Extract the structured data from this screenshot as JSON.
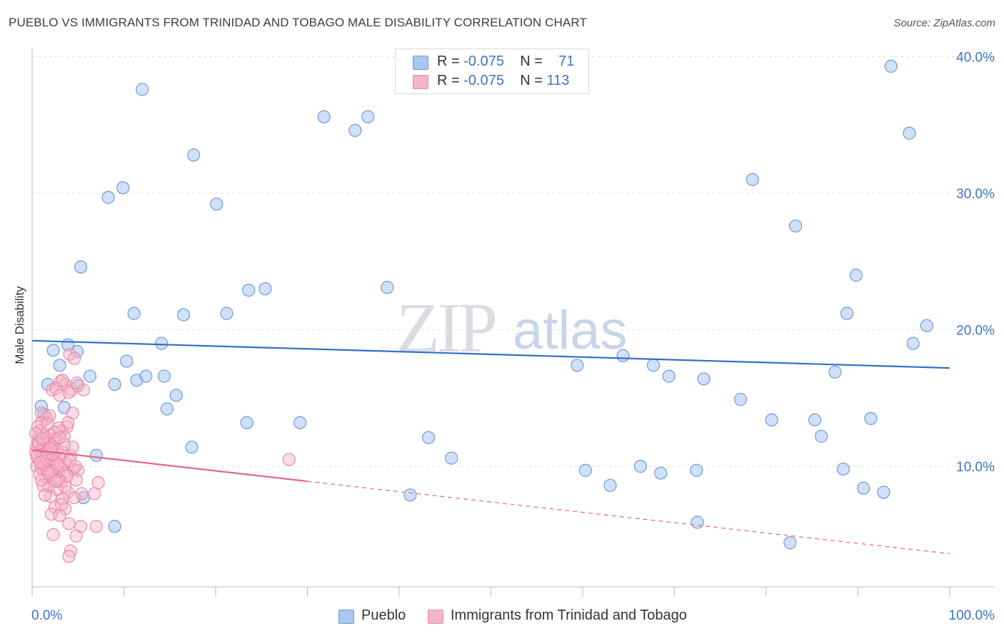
{
  "header": {
    "title": "PUEBLO VS IMMIGRANTS FROM TRINIDAD AND TOBAGO MALE DISABILITY CORRELATION CHART",
    "source": "Source: ZipAtlas.com"
  },
  "watermark": {
    "zip": "ZIP",
    "atlas": "atlas"
  },
  "legend": {
    "rows": [
      {
        "r_label": "R = ",
        "r_value": "-0.075",
        "n_label": "N = ",
        "n_value": "71",
        "color": "#a9c6f0"
      },
      {
        "r_label": "R = ",
        "r_value": "-0.075",
        "n_label": "N = ",
        "n_value": "113",
        "color": "#f5b5c8"
      }
    ]
  },
  "bottom_legend": [
    "Pueblo",
    "Immigrants from Trinidad and Tobago"
  ],
  "colors": {
    "blue_fill": "#a9c6f0",
    "blue_stroke": "#6e9bd8",
    "blue_line": "#2f6fc9",
    "pink_fill": "#f5b5c8",
    "pink_stroke": "#e98aa8",
    "pink_line": "#e4658f",
    "grid": "#e2e2e2",
    "axis_label": "#3f73c8"
  },
  "chart_data": {
    "type": "scatter",
    "title": "PUEBLO VS IMMIGRANTS FROM TRINIDAD AND TOBAGO MALE DISABILITY CORRELATION CHART",
    "xlabel": "",
    "ylabel": "Male Disability",
    "xlim": [
      0,
      100
    ],
    "ylim": [
      0,
      40
    ],
    "x_tick_labels": [
      "0.0%",
      "100.0%"
    ],
    "y_ticks": [
      10,
      20,
      30,
      40
    ],
    "y_tick_labels": [
      "10.0%",
      "20.0%",
      "30.0%",
      "40.0%"
    ],
    "grid": true,
    "series": [
      {
        "name": "Pueblo",
        "color": "#a9c6f0",
        "trend": {
          "x": [
            0,
            100
          ],
          "y": [
            19.2,
            17.2
          ]
        },
        "points": [
          [
            12.0,
            37.6
          ],
          [
            31.8,
            35.6
          ],
          [
            35.2,
            34.6
          ],
          [
            36.6,
            35.6
          ],
          [
            93.6,
            39.3
          ],
          [
            95.6,
            34.4
          ],
          [
            17.6,
            32.8
          ],
          [
            9.9,
            30.4
          ],
          [
            8.3,
            29.7
          ],
          [
            20.1,
            29.2
          ],
          [
            78.5,
            31.0
          ],
          [
            83.2,
            27.6
          ],
          [
            5.3,
            24.6
          ],
          [
            23.6,
            22.9
          ],
          [
            25.4,
            23.0
          ],
          [
            38.7,
            23.1
          ],
          [
            89.8,
            24.0
          ],
          [
            11.1,
            21.2
          ],
          [
            16.5,
            21.1
          ],
          [
            21.2,
            21.2
          ],
          [
            88.8,
            21.2
          ],
          [
            97.5,
            20.3
          ],
          [
            2.3,
            18.5
          ],
          [
            3.9,
            18.9
          ],
          [
            4.9,
            18.4
          ],
          [
            14.1,
            19.0
          ],
          [
            96.0,
            19.0
          ],
          [
            10.3,
            17.7
          ],
          [
            3.0,
            17.4
          ],
          [
            6.3,
            16.6
          ],
          [
            9.0,
            16.0
          ],
          [
            11.4,
            16.3
          ],
          [
            12.4,
            16.6
          ],
          [
            14.4,
            16.6
          ],
          [
            1.7,
            16.0
          ],
          [
            5.0,
            15.9
          ],
          [
            15.7,
            15.2
          ],
          [
            14.7,
            14.2
          ],
          [
            1.0,
            14.4
          ],
          [
            3.5,
            14.3
          ],
          [
            1.3,
            13.8
          ],
          [
            23.4,
            13.2
          ],
          [
            59.4,
            17.4
          ],
          [
            64.4,
            18.1
          ],
          [
            67.7,
            17.4
          ],
          [
            69.4,
            16.6
          ],
          [
            73.2,
            16.4
          ],
          [
            87.5,
            16.9
          ],
          [
            77.2,
            14.9
          ],
          [
            80.6,
            13.4
          ],
          [
            85.3,
            13.4
          ],
          [
            91.4,
            13.5
          ],
          [
            86.0,
            12.2
          ],
          [
            43.2,
            12.1
          ],
          [
            17.4,
            11.4
          ],
          [
            45.7,
            10.6
          ],
          [
            7.0,
            10.8
          ],
          [
            60.3,
            9.7
          ],
          [
            66.3,
            10.0
          ],
          [
            68.5,
            9.5
          ],
          [
            72.4,
            9.7
          ],
          [
            88.4,
            9.8
          ],
          [
            63.0,
            8.6
          ],
          [
            90.6,
            8.4
          ],
          [
            92.8,
            8.1
          ],
          [
            41.2,
            7.9
          ],
          [
            5.6,
            7.7
          ],
          [
            72.5,
            5.9
          ],
          [
            82.6,
            4.4
          ],
          [
            9.0,
            5.6
          ],
          [
            29.2,
            13.2
          ]
        ]
      },
      {
        "name": "Immigrants from Trinidad and Tobago",
        "color": "#f5b5c8",
        "trend_solid": {
          "x": [
            0,
            30
          ],
          "y": [
            11.2,
            8.9
          ]
        },
        "trend_dashed": {
          "x": [
            30,
            100
          ],
          "y": [
            8.9,
            3.6
          ]
        },
        "points": [
          [
            4.1,
            18.2
          ],
          [
            4.6,
            17.9
          ],
          [
            3.1,
            16.2
          ],
          [
            3.6,
            16.0
          ],
          [
            2.2,
            15.6
          ],
          [
            2.6,
            15.7
          ],
          [
            3.0,
            15.2
          ],
          [
            4.3,
            15.6
          ],
          [
            5.6,
            15.6
          ],
          [
            4.0,
            15.4
          ],
          [
            1.0,
            13.9
          ],
          [
            4.4,
            13.9
          ],
          [
            1.6,
            13.5
          ],
          [
            1.0,
            13.2
          ],
          [
            3.8,
            12.9
          ],
          [
            3.2,
            12.6
          ],
          [
            2.0,
            12.3
          ],
          [
            0.8,
            12.2
          ],
          [
            1.5,
            12.1
          ],
          [
            2.5,
            12.0
          ],
          [
            3.5,
            12.2
          ],
          [
            0.6,
            11.8
          ],
          [
            1.2,
            11.6
          ],
          [
            1.8,
            11.7
          ],
          [
            2.2,
            11.5
          ],
          [
            0.5,
            11.4
          ],
          [
            0.9,
            11.2
          ],
          [
            1.4,
            11.3
          ],
          [
            2.8,
            11.2
          ],
          [
            3.4,
            11.0
          ],
          [
            0.4,
            11.0
          ],
          [
            1.1,
            10.9
          ],
          [
            1.7,
            10.8
          ],
          [
            2.3,
            10.7
          ],
          [
            3.0,
            10.6
          ],
          [
            4.2,
            10.8
          ],
          [
            0.7,
            10.5
          ],
          [
            1.3,
            10.4
          ],
          [
            1.9,
            10.2
          ],
          [
            2.6,
            10.3
          ],
          [
            3.7,
            10.2
          ],
          [
            0.5,
            10.0
          ],
          [
            1.0,
            9.9
          ],
          [
            1.6,
            9.8
          ],
          [
            2.2,
            9.7
          ],
          [
            2.9,
            9.6
          ],
          [
            3.5,
            9.5
          ],
          [
            4.5,
            9.8
          ],
          [
            5.0,
            9.7
          ],
          [
            0.8,
            9.4
          ],
          [
            1.5,
            9.2
          ],
          [
            2.4,
            9.0
          ],
          [
            3.2,
            8.9
          ],
          [
            4.8,
            9.0
          ],
          [
            1.8,
            8.5
          ],
          [
            2.7,
            8.3
          ],
          [
            3.9,
            8.1
          ],
          [
            2.0,
            7.8
          ],
          [
            3.3,
            7.6
          ],
          [
            4.6,
            7.7
          ],
          [
            2.5,
            7.0
          ],
          [
            3.6,
            6.9
          ],
          [
            2.1,
            6.5
          ],
          [
            3.0,
            6.4
          ],
          [
            4.0,
            5.8
          ],
          [
            5.3,
            5.6
          ],
          [
            2.3,
            5.0
          ],
          [
            4.8,
            4.9
          ],
          [
            4.2,
            3.8
          ],
          [
            4.0,
            3.4
          ],
          [
            7.0,
            5.6
          ],
          [
            6.8,
            8.0
          ],
          [
            7.2,
            8.8
          ],
          [
            5.4,
            8.0
          ],
          [
            28.0,
            10.5
          ],
          [
            1.3,
            10.1
          ],
          [
            2.0,
            9.3
          ],
          [
            0.9,
            12.6
          ],
          [
            2.9,
            12.8
          ],
          [
            1.6,
            11.0
          ],
          [
            3.1,
            10.0
          ],
          [
            0.6,
            12.9
          ],
          [
            1.9,
            13.7
          ],
          [
            4.9,
            16.1
          ],
          [
            3.3,
            16.3
          ],
          [
            2.1,
            9.6
          ],
          [
            1.2,
            8.6
          ],
          [
            3.6,
            8.5
          ],
          [
            2.6,
            11.9
          ],
          [
            0.4,
            12.4
          ],
          [
            1.5,
            10.6
          ],
          [
            2.8,
            10.1
          ],
          [
            3.8,
            9.3
          ],
          [
            1.0,
            9.0
          ],
          [
            4.4,
            11.4
          ],
          [
            0.7,
            11.7
          ],
          [
            2.4,
            12.5
          ],
          [
            1.7,
            13.1
          ],
          [
            3.9,
            13.2
          ],
          [
            0.5,
            10.7
          ],
          [
            2.2,
            10.9
          ],
          [
            3.5,
            11.6
          ],
          [
            1.1,
            12.0
          ],
          [
            2.9,
            9.0
          ],
          [
            1.4,
            7.9
          ],
          [
            3.2,
            7.2
          ],
          [
            4.1,
            10.4
          ],
          [
            0.9,
            10.3
          ],
          [
            2.0,
            11.3
          ],
          [
            3.0,
            12.1
          ],
          [
            1.8,
            9.5
          ],
          [
            2.6,
            8.9
          ],
          [
            4.7,
            10.0
          ]
        ]
      }
    ]
  }
}
